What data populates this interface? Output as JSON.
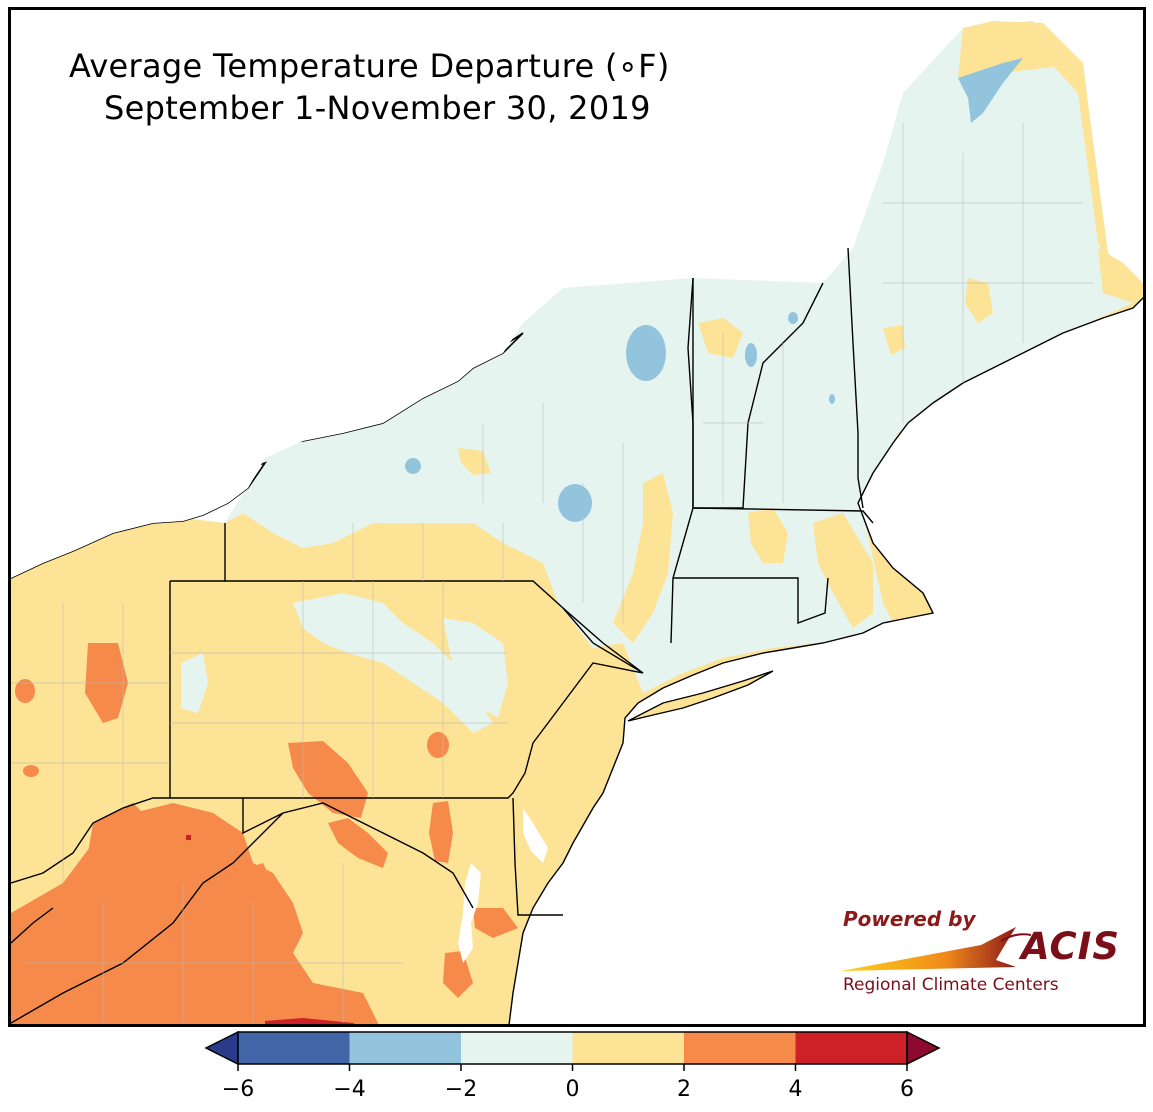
{
  "map": {
    "title_line1": "Average Temperature Departure (∘F)",
    "title_line2": "September 1-November 30, 2019",
    "region": "Northeast United States"
  },
  "legend": {
    "bins": [
      {
        "from": -6,
        "to": -4,
        "color": "#4265a8"
      },
      {
        "from": -4,
        "to": -2,
        "color": "#92c4de"
      },
      {
        "from": -2,
        "to": 0,
        "color": "#e6f4ef"
      },
      {
        "from": 0,
        "to": 2,
        "color": "#fde395"
      },
      {
        "from": 2,
        "to": 4,
        "color": "#f58a4b"
      },
      {
        "from": 4,
        "to": 6,
        "color": "#cd2127"
      }
    ],
    "under_color": "#2b3b8c",
    "over_color": "#8b0a2e",
    "ticks": [
      "−6",
      "−4",
      "−2",
      "0",
      "2",
      "4",
      "6"
    ]
  },
  "logo": {
    "powered_by": "Powered by",
    "brand": "ACIS",
    "subtitle": "Regional Climate Centers",
    "colors": {
      "dark_red": "#7a0f1a",
      "orange": "#f08a1a",
      "yellow": "#ffd21a"
    }
  }
}
